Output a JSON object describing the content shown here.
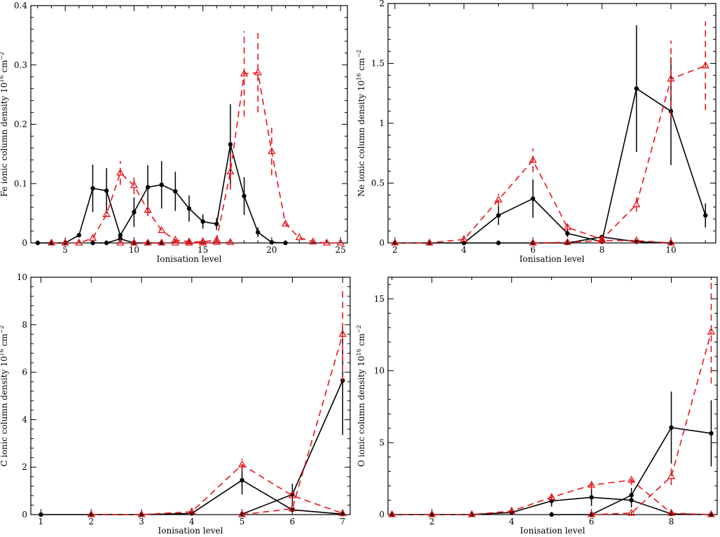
{
  "chart_data": [
    {
      "type": "line",
      "xlabel": "Ionisation level",
      "ylabel_main": "Fe ionic column density 10",
      "ylabel_exp1": "16",
      "ylabel_unit": " cm",
      "ylabel_exp2": "−2",
      "xlim": [
        2.5,
        25.5
      ],
      "ylim": [
        0,
        0.4
      ],
      "xticks": [
        5,
        10,
        15,
        20,
        25
      ],
      "xtick_labels": [
        "5",
        "10",
        "15",
        "20",
        "25"
      ],
      "yticks": [
        0,
        0.1,
        0.2,
        0.3,
        0.4
      ],
      "ytick_labels": [
        "0",
        "0.1",
        "0.2",
        "0.3",
        "0.4"
      ],
      "series": [
        {
          "color": "#000000",
          "style": "solid",
          "marker": "circle",
          "points": [
            {
              "x": 3,
              "y": 0
            },
            {
              "x": 4,
              "y": 0
            },
            {
              "x": 5,
              "y": 0
            },
            {
              "x": 6,
              "y": 0.013
            },
            {
              "x": 7,
              "y": 0.092,
              "err": 0.04
            },
            {
              "x": 8,
              "y": 0.088,
              "err": 0.038
            },
            {
              "x": 9,
              "y": 0.013
            },
            {
              "x": 10,
              "y": 0.052,
              "err": 0.025
            },
            {
              "x": 11,
              "y": 0.094,
              "err": 0.037
            },
            {
              "x": 12,
              "y": 0.098,
              "err": 0.04
            },
            {
              "x": 13,
              "y": 0.087,
              "err": 0.033
            },
            {
              "x": 14,
              "y": 0.058,
              "err": 0.022
            },
            {
              "x": 15,
              "y": 0.036,
              "err": 0.012
            },
            {
              "x": 16,
              "y": 0.032,
              "err": 0.01
            },
            {
              "x": 17,
              "y": 0.166,
              "err": 0.068
            },
            {
              "x": 18,
              "y": 0.079,
              "err": 0.032
            },
            {
              "x": 19,
              "y": 0.018,
              "err": 0.008
            },
            {
              "x": 20,
              "y": 0.001
            },
            {
              "x": 21,
              "y": 0
            }
          ]
        },
        {
          "color": "#000000",
          "style": "solid",
          "marker": "circle",
          "points": [
            {
              "x": 7,
              "y": 0
            },
            {
              "x": 8,
              "y": 0
            },
            {
              "x": 9,
              "y": 0.007
            },
            {
              "x": 10,
              "y": 0
            },
            {
              "x": 11,
              "y": 0
            },
            {
              "x": 12,
              "y": 0
            }
          ]
        },
        {
          "color": "#e8141b",
          "style": "dashed",
          "marker": "triangle",
          "points": [
            {
              "x": 4,
              "y": 0
            },
            {
              "x": 5,
              "y": 0
            },
            {
              "x": 6,
              "y": 0
            },
            {
              "x": 7,
              "y": 0.008
            },
            {
              "x": 8,
              "y": 0.048
            },
            {
              "x": 9,
              "y": 0.118,
              "err": 0.02
            },
            {
              "x": 10,
              "y": 0.097,
              "err": 0.015
            },
            {
              "x": 11,
              "y": 0.055,
              "err": 0.01
            },
            {
              "x": 12,
              "y": 0.021
            },
            {
              "x": 13,
              "y": 0.005
            },
            {
              "x": 14,
              "y": 0.002
            },
            {
              "x": 15,
              "y": 0.002
            },
            {
              "x": 16,
              "y": 0.005
            },
            {
              "x": 17,
              "y": 0.12,
              "err": 0.03
            },
            {
              "x": 18,
              "y": 0.285,
              "err": 0.072
            },
            {
              "x": 19,
              "y": 0.287,
              "err": 0.067
            },
            {
              "x": 20,
              "y": 0.154,
              "err": 0.04
            },
            {
              "x": 21,
              "y": 0.032
            },
            {
              "x": 22,
              "y": 0.009
            },
            {
              "x": 23,
              "y": 0.002
            },
            {
              "x": 24,
              "y": 0
            },
            {
              "x": 25,
              "y": 0
            }
          ]
        },
        {
          "color": "#e8141b",
          "style": "dashed",
          "marker": "triangle",
          "points": [
            {
              "x": 9,
              "y": 0
            },
            {
              "x": 10,
              "y": 0
            },
            {
              "x": 11,
              "y": 0
            },
            {
              "x": 12,
              "y": 0
            },
            {
              "x": 13,
              "y": 0
            },
            {
              "x": 14,
              "y": 0
            },
            {
              "x": 15,
              "y": 0
            },
            {
              "x": 16,
              "y": 0.001
            },
            {
              "x": 17,
              "y": 0.001
            }
          ]
        }
      ]
    },
    {
      "type": "line",
      "xlabel": "Ionisation level",
      "ylabel_main": "Ne ionic column density 10",
      "ylabel_exp1": "16",
      "ylabel_unit": " cm",
      "ylabel_exp2": "−2",
      "xlim": [
        1.8,
        11.3
      ],
      "ylim": [
        0,
        2
      ],
      "xticks": [
        2,
        4,
        6,
        8,
        10
      ],
      "xtick_labels": [
        "2",
        "4",
        "6",
        "8",
        "10"
      ],
      "yticks": [
        0,
        0.5,
        1,
        1.5,
        2
      ],
      "ytick_labels": [
        "0",
        "0.5",
        "1",
        "1.5",
        "2"
      ],
      "series": [
        {
          "color": "#000000",
          "style": "solid",
          "marker": "circle",
          "points": [
            {
              "x": 4,
              "y": 0
            },
            {
              "x": 5,
              "y": 0.23,
              "err": 0.08
            },
            {
              "x": 6,
              "y": 0.37,
              "err": 0.16
            },
            {
              "x": 7,
              "y": 0.08,
              "err": 0.03
            },
            {
              "x": 8,
              "y": 0.01
            },
            {
              "x": 9,
              "y": 1.29,
              "err": 0.53
            },
            {
              "x": 10,
              "y": 1.1,
              "err": 0.45
            },
            {
              "x": 11,
              "y": 0.23,
              "err": 0.1
            }
          ]
        },
        {
          "color": "#000000",
          "style": "solid",
          "marker": "circle",
          "points": [
            {
              "x": 2,
              "y": 0
            },
            {
              "x": 3,
              "y": 0
            },
            {
              "x": 4,
              "y": 0
            },
            {
              "x": 5,
              "y": 0
            },
            {
              "x": 6,
              "y": 0
            },
            {
              "x": 7,
              "y": 0
            },
            {
              "x": 8,
              "y": 0.05
            },
            {
              "x": 9,
              "y": 0.01
            },
            {
              "x": 10,
              "y": 0
            }
          ]
        },
        {
          "color": "#e8141b",
          "style": "dashed",
          "marker": "triangle",
          "points": [
            {
              "x": 2,
              "y": 0
            },
            {
              "x": 3,
              "y": 0
            },
            {
              "x": 4,
              "y": 0.03
            },
            {
              "x": 5,
              "y": 0.36,
              "err": 0.05
            },
            {
              "x": 6,
              "y": 0.69,
              "err": 0.1
            },
            {
              "x": 7,
              "y": 0.13,
              "err": 0.02
            },
            {
              "x": 8,
              "y": 0.03
            },
            {
              "x": 9,
              "y": 0.32,
              "err": 0.06
            },
            {
              "x": 10,
              "y": 1.37,
              "err": 0.32
            },
            {
              "x": 11,
              "y": 1.48,
              "err": 0.37
            }
          ]
        },
        {
          "color": "#e8141b",
          "style": "dashed",
          "marker": "triangle",
          "points": [
            {
              "x": 6,
              "y": 0
            },
            {
              "x": 7,
              "y": 0.005
            },
            {
              "x": 8,
              "y": 0.02
            },
            {
              "x": 9,
              "y": 0.02
            },
            {
              "x": 10,
              "y": 0
            }
          ]
        }
      ]
    },
    {
      "type": "line",
      "xlabel": "Ionisation level",
      "ylabel_main": "C ionic column density 10",
      "ylabel_exp1": "16",
      "ylabel_unit": " cm",
      "ylabel_exp2": "−2",
      "xlim": [
        0.8,
        7.15
      ],
      "ylim": [
        0,
        10
      ],
      "xticks": [
        1,
        2,
        3,
        4,
        5,
        6,
        7
      ],
      "xtick_labels": [
        "1",
        "2",
        "3",
        "4",
        "5",
        "6",
        "7"
      ],
      "yticks": [
        0,
        2,
        4,
        6,
        8,
        10
      ],
      "ytick_labels": [
        "0",
        "2",
        "4",
        "6",
        "8",
        "10"
      ],
      "series": [
        {
          "color": "#000000",
          "style": "solid",
          "marker": "circle",
          "points": [
            {
              "x": 1,
              "y": 0
            },
            {
              "x": 2,
              "y": 0
            },
            {
              "x": 3,
              "y": 0
            },
            {
              "x": 4,
              "y": 0.05
            },
            {
              "x": 5,
              "y": 1.45,
              "err": 0.6
            },
            {
              "x": 6,
              "y": 0.2
            },
            {
              "x": 7,
              "y": 0.02
            }
          ]
        },
        {
          "color": "#000000",
          "style": "solid",
          "marker": "circle",
          "points": [
            {
              "x": 5,
              "y": 0.02
            },
            {
              "x": 6,
              "y": 0.85,
              "err": 0.45
            },
            {
              "x": 7,
              "y": 5.65,
              "err": 2.3
            }
          ]
        },
        {
          "color": "#e8141b",
          "style": "dashed",
          "marker": "triangle",
          "points": [
            {
              "x": 2,
              "y": 0
            },
            {
              "x": 3,
              "y": 0
            },
            {
              "x": 4,
              "y": 0.12
            },
            {
              "x": 5,
              "y": 2.1,
              "err": 0.25
            },
            {
              "x": 6,
              "y": 0.8
            },
            {
              "x": 7,
              "y": 0.05
            }
          ]
        },
        {
          "color": "#e8141b",
          "style": "dashed",
          "marker": "triangle",
          "points": [
            {
              "x": 5,
              "y": 0
            },
            {
              "x": 6,
              "y": 0.25
            },
            {
              "x": 7,
              "y": 7.6,
              "err": 2.0
            }
          ]
        }
      ]
    },
    {
      "type": "line",
      "xlabel": "Ionisation level",
      "ylabel_main": "O ionic column density 10",
      "ylabel_exp1": "16",
      "ylabel_unit": " cm",
      "ylabel_exp2": "−2",
      "xlim": [
        0.9,
        9.15
      ],
      "ylim": [
        0,
        16.5
      ],
      "xticks": [
        2,
        4,
        6,
        8
      ],
      "xtick_labels": [
        "2",
        "4",
        "6",
        "8"
      ],
      "yticks": [
        0,
        5,
        10,
        15
      ],
      "ytick_labels": [
        "0",
        "5",
        "10",
        "15"
      ],
      "series": [
        {
          "color": "#000000",
          "style": "solid",
          "marker": "circle",
          "points": [
            {
              "x": 1,
              "y": 0
            },
            {
              "x": 2,
              "y": 0
            },
            {
              "x": 3,
              "y": 0
            },
            {
              "x": 4,
              "y": 0.15
            },
            {
              "x": 5,
              "y": 0.95,
              "err": 0.4
            },
            {
              "x": 6,
              "y": 1.2,
              "err": 0.6
            },
            {
              "x": 7,
              "y": 1.0,
              "err": 0.5
            },
            {
              "x": 8,
              "y": 0.05
            },
            {
              "x": 9,
              "y": 0
            }
          ]
        },
        {
          "color": "#000000",
          "style": "solid",
          "marker": "circle",
          "points": [
            {
              "x": 5,
              "y": 0
            },
            {
              "x": 6,
              "y": 0
            },
            {
              "x": 7,
              "y": 1.35,
              "err": 0.5
            },
            {
              "x": 8,
              "y": 6.05,
              "err": 2.5
            },
            {
              "x": 9,
              "y": 5.65,
              "err": 2.3
            }
          ]
        },
        {
          "color": "#e8141b",
          "style": "dashed",
          "marker": "triangle",
          "points": [
            {
              "x": 1,
              "y": 0
            },
            {
              "x": 2,
              "y": 0
            },
            {
              "x": 3,
              "y": 0
            },
            {
              "x": 4,
              "y": 0.25
            },
            {
              "x": 5,
              "y": 1.2,
              "err": 0.2
            },
            {
              "x": 6,
              "y": 2.05,
              "err": 0.3
            },
            {
              "x": 7,
              "y": 2.4,
              "err": 0.35
            },
            {
              "x": 8,
              "y": 0.1
            },
            {
              "x": 9,
              "y": 0
            }
          ]
        },
        {
          "color": "#e8141b",
          "style": "dashed",
          "marker": "triangle",
          "points": [
            {
              "x": 6,
              "y": 0
            },
            {
              "x": 7,
              "y": 0.1
            },
            {
              "x": 8,
              "y": 2.65,
              "err": 0.6
            },
            {
              "x": 9,
              "y": 12.7,
              "err": 3.6
            }
          ]
        }
      ]
    }
  ]
}
